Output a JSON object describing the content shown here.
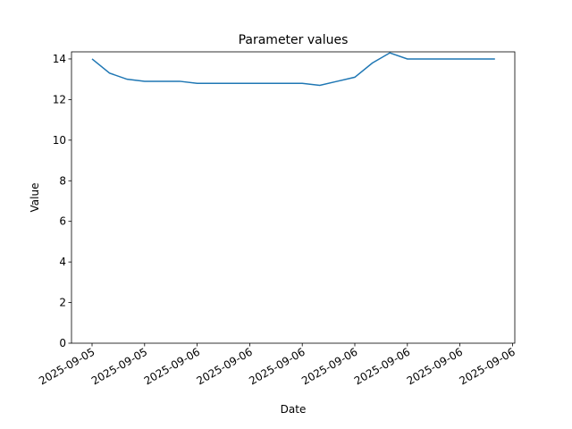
{
  "chart_data": {
    "type": "line",
    "title": "Parameter values",
    "x_label": "Date",
    "y_label": "Value",
    "categories": [
      "2025-09-05",
      null,
      null,
      "2025-09-05",
      null,
      null,
      "2025-09-06",
      null,
      null,
      "2025-09-06",
      null,
      null,
      "2025-09-06",
      null,
      null,
      "2025-09-06",
      null,
      null,
      "2025-09-06",
      null,
      null,
      "2025-09-06",
      null,
      null,
      "2025-09-06"
    ],
    "series": [
      {
        "name": "Value",
        "color": "#1f77b4",
        "values": [
          14.0,
          13.3,
          13.0,
          12.9,
          12.9,
          12.9,
          12.8,
          12.8,
          12.8,
          12.8,
          12.8,
          12.8,
          12.8,
          12.7,
          12.9,
          13.1,
          13.8,
          14.3,
          14.0,
          14.0,
          14.0,
          14.0,
          14.0,
          14.0,
          null
        ]
      }
    ],
    "ylim": [
      0,
      14.35
    ],
    "yticks": [
      0,
      2,
      4,
      6,
      8,
      10,
      12,
      14
    ]
  }
}
